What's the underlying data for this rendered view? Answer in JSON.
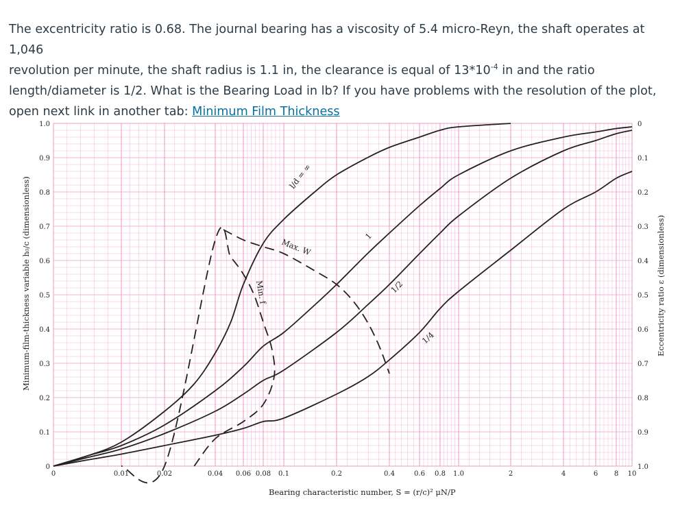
{
  "question": {
    "line1": "The excentricity ratio is 0.68. The journal bearing has a viscosity of 5.4 micro-Reyn, the shaft operates at 1,046",
    "line2": "revolution per minute, the shaft radius is 1.1 in, the clearance is equal of 13*10",
    "line2_exp": "-4",
    "line2_tail": " in and the ratio",
    "line3": "length/diameter is 1/2. What is the Bearing Load in lb? If you have problems with the resolution of the plot,",
    "line4": "open next link in another tab: ",
    "link_text": "Minimum Film Thickness"
  },
  "chart_data": {
    "type": "line",
    "title": "",
    "xlabel_text": "Bearing characteristic number, S =",
    "xlabel_formula": "(r/c)² μN/P",
    "ylabel_left": "Minimum-film-thickness variable h₀/c (dimensionless)",
    "ylabel_right": "Eccentricity ratio ε (dimensionless)",
    "x_ticks": [
      "0",
      "0.01",
      "0.02",
      "0.04",
      "0.06",
      "0.08",
      "0.1",
      "0.2",
      "0.4",
      "0.6",
      "0.8",
      "1.0",
      "2",
      "4",
      "6",
      "8",
      "10"
    ],
    "y_left_ticks": [
      "0",
      "0.1",
      "0.2",
      "0.3",
      "0.4",
      "0.5",
      "0.6",
      "0.7",
      "0.8",
      "0.9",
      "1.0"
    ],
    "y_right_ticks": [
      "1.0",
      "0.9",
      "0.8",
      "0.7",
      "0.6",
      "0.5",
      "0.4",
      "0.3",
      "0.2",
      "0.1",
      "0"
    ],
    "ylim": [
      0,
      1
    ],
    "grid": true,
    "series": [
      {
        "name": "l/d = ∞",
        "x": [
          0,
          0.005,
          0.01,
          0.02,
          0.03,
          0.04,
          0.05,
          0.06,
          0.08,
          0.1,
          0.15,
          0.2,
          0.3,
          0.4,
          0.6,
          0.8,
          1.0,
          2.0
        ],
        "y": [
          0,
          0.03,
          0.07,
          0.16,
          0.24,
          0.33,
          0.42,
          0.53,
          0.65,
          0.72,
          0.8,
          0.85,
          0.9,
          0.93,
          0.96,
          0.98,
          0.99,
          1.0
        ]
      },
      {
        "name": "1",
        "x": [
          0,
          0.005,
          0.01,
          0.02,
          0.04,
          0.06,
          0.08,
          0.1,
          0.15,
          0.2,
          0.3,
          0.4,
          0.6,
          0.8,
          1.0,
          2,
          4,
          6,
          8,
          10
        ],
        "y": [
          0,
          0.03,
          0.06,
          0.12,
          0.22,
          0.29,
          0.35,
          0.39,
          0.47,
          0.53,
          0.62,
          0.68,
          0.76,
          0.81,
          0.85,
          0.92,
          0.96,
          0.975,
          0.985,
          0.99
        ]
      },
      {
        "name": "1/2",
        "x": [
          0,
          0.005,
          0.01,
          0.02,
          0.04,
          0.06,
          0.08,
          0.1,
          0.2,
          0.3,
          0.4,
          0.6,
          0.8,
          1.0,
          2,
          4,
          6,
          8,
          10
        ],
        "y": [
          0,
          0.025,
          0.05,
          0.095,
          0.16,
          0.21,
          0.25,
          0.28,
          0.39,
          0.47,
          0.53,
          0.62,
          0.68,
          0.73,
          0.84,
          0.92,
          0.95,
          0.97,
          0.98
        ]
      },
      {
        "name": "1/4",
        "x": [
          0,
          0.005,
          0.01,
          0.02,
          0.04,
          0.06,
          0.08,
          0.1,
          0.2,
          0.3,
          0.4,
          0.6,
          0.8,
          1.0,
          2,
          4,
          6,
          8,
          10
        ],
        "y": [
          0,
          0.018,
          0.035,
          0.06,
          0.09,
          0.11,
          0.13,
          0.14,
          0.21,
          0.26,
          0.31,
          0.39,
          0.46,
          0.51,
          0.63,
          0.75,
          0.8,
          0.84,
          0.86
        ]
      }
    ],
    "annotations": [
      {
        "text": "Max. W",
        "style": "dashed",
        "x": [
          0.045,
          0.06,
          0.08,
          0.1,
          0.15,
          0.2,
          0.25,
          0.3,
          0.35,
          0.4
        ],
        "y": [
          0.69,
          0.66,
          0.64,
          0.62,
          0.57,
          0.53,
          0.48,
          0.42,
          0.35,
          0.27
        ]
      },
      {
        "text": "Min. f",
        "style": "dashed",
        "x": [
          0.03,
          0.04,
          0.06,
          0.08,
          0.09,
          0.088,
          0.08,
          0.07,
          0.06,
          0.05,
          0.04,
          0.02,
          0.01
        ],
        "y": [
          0.0,
          0.08,
          0.13,
          0.18,
          0.26,
          0.34,
          0.42,
          0.5,
          0.56,
          0.61,
          0.66,
          0.0,
          0.0
        ]
      }
    ]
  }
}
